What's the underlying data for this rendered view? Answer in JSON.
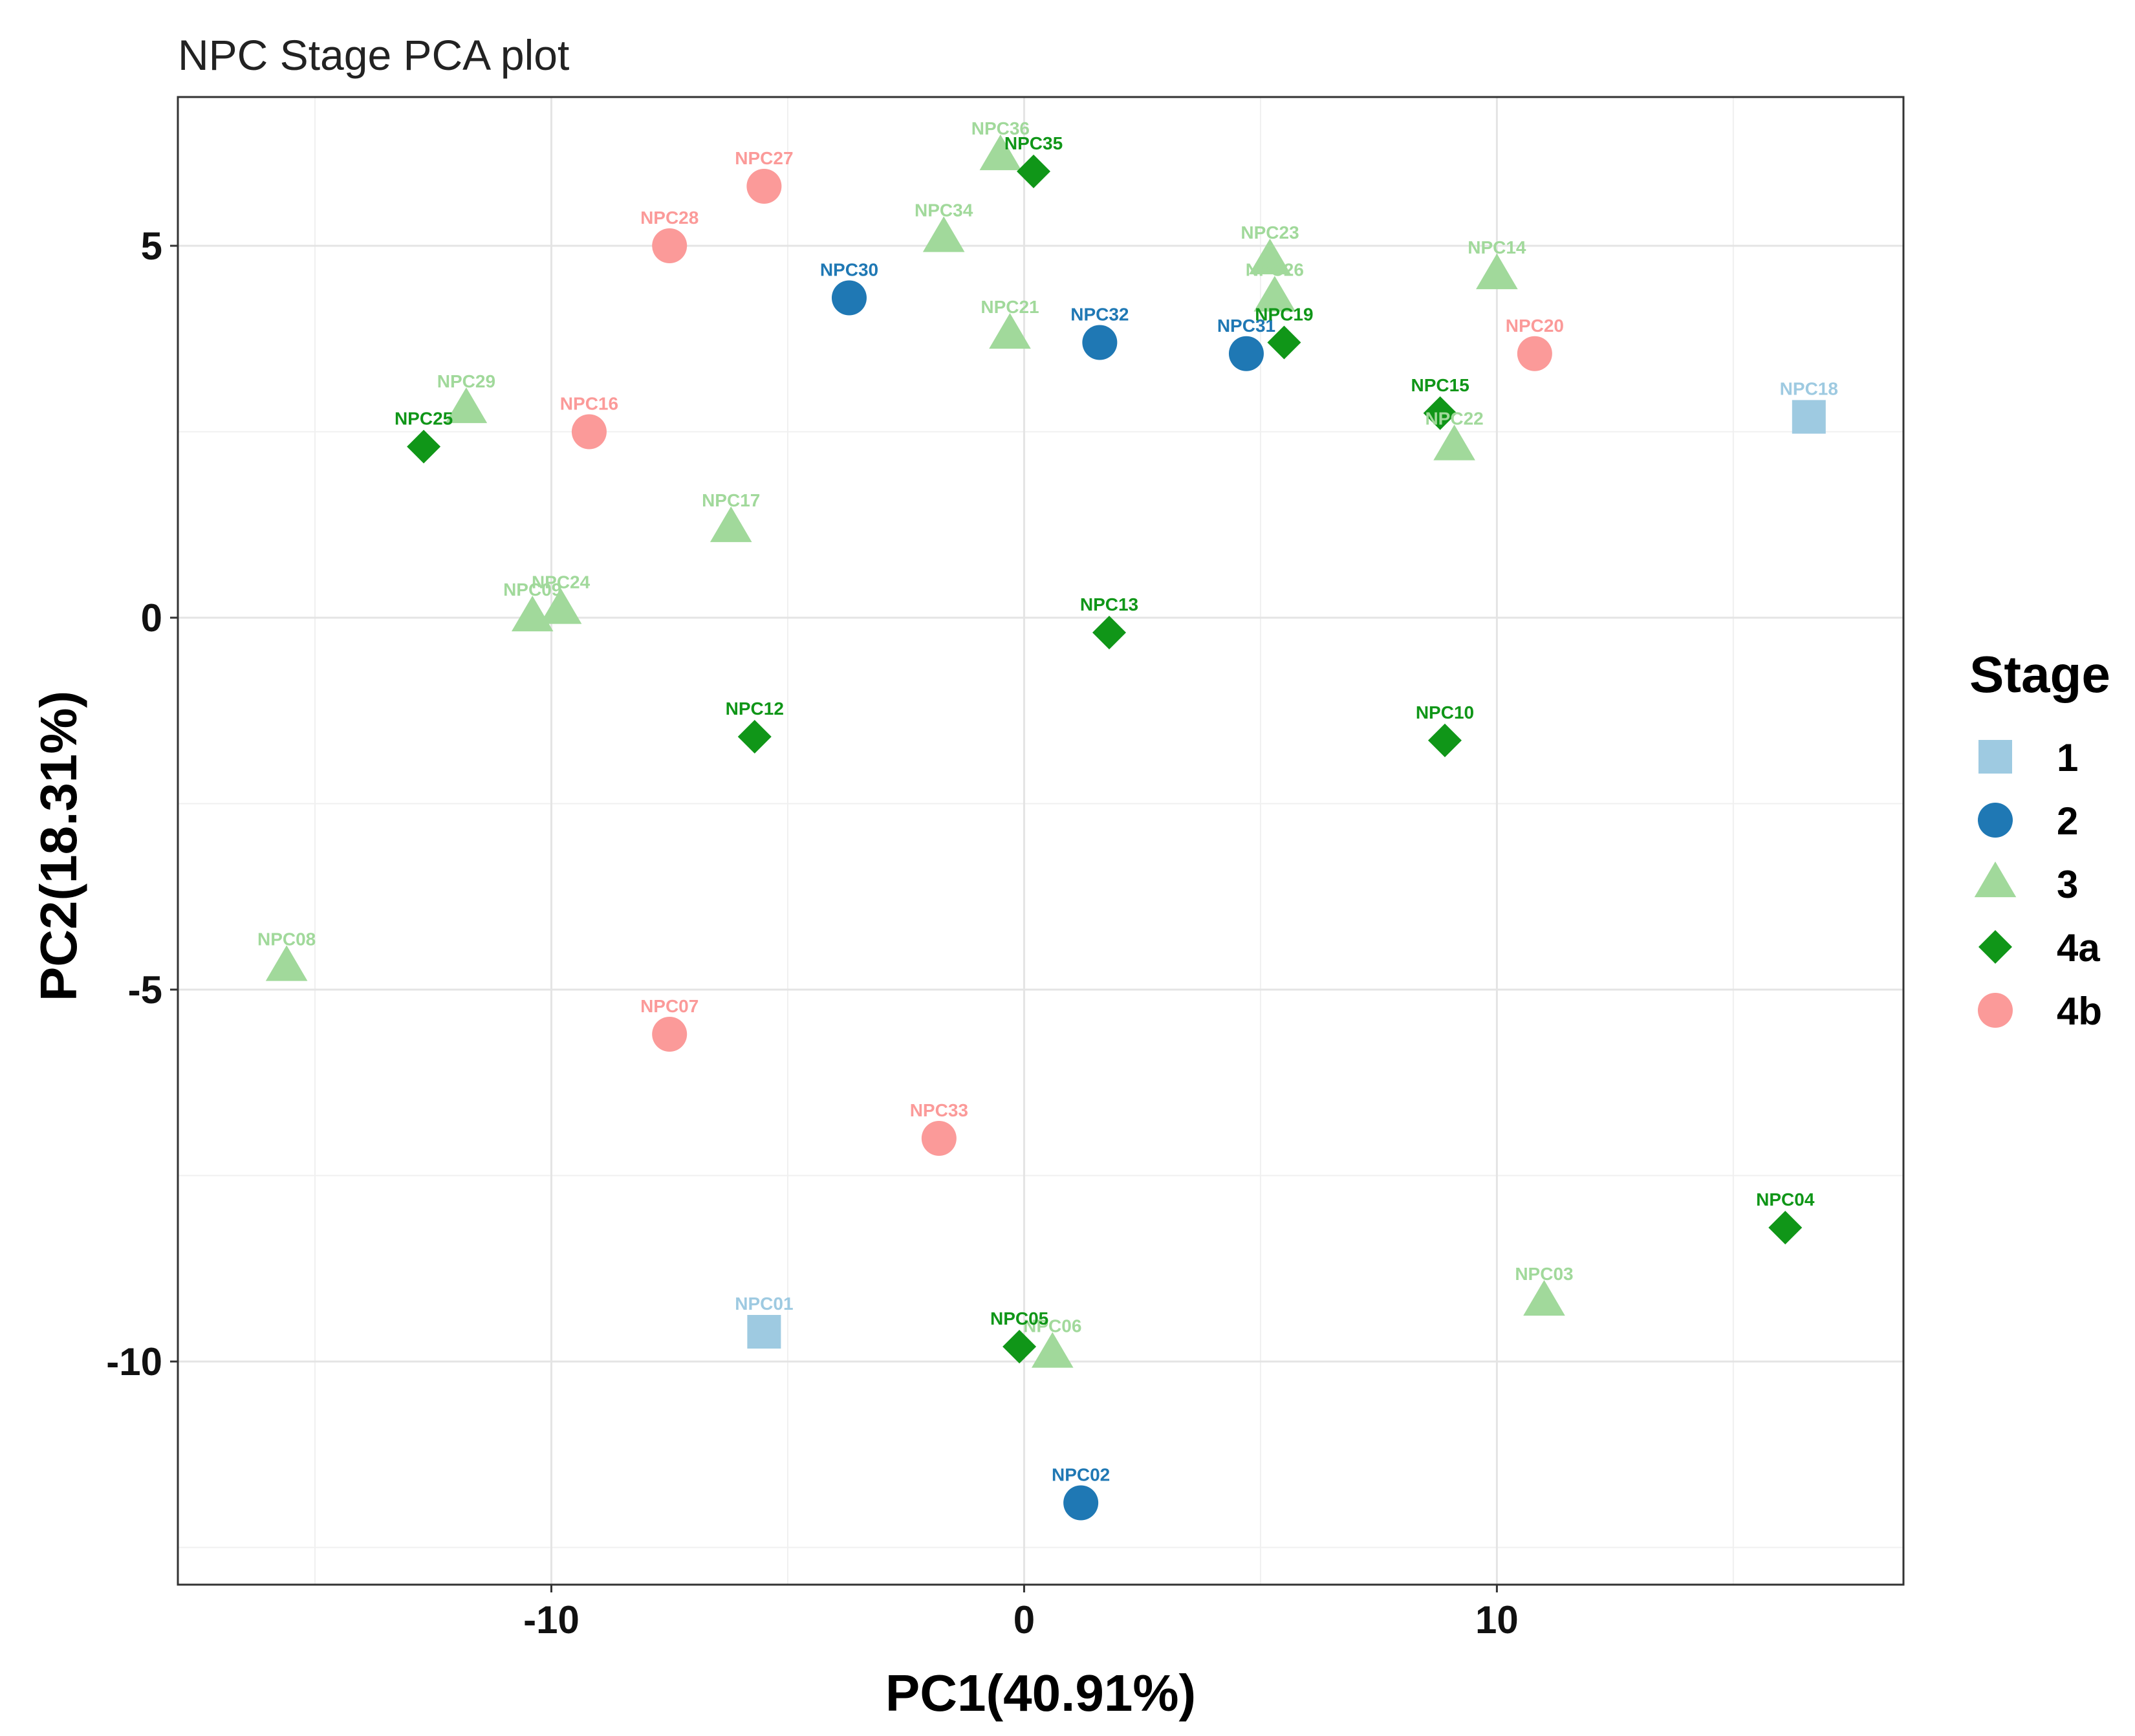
{
  "chart_data": {
    "type": "scatter",
    "title": "NPC Stage PCA plot",
    "xlabel": "PC1(40.91%)",
    "ylabel": "PC2(18.31%)",
    "xlim": [
      -17.9,
      18.6
    ],
    "ylim": [
      -13.0,
      7.0
    ],
    "x_ticks": [
      -10,
      0,
      10
    ],
    "y_ticks": [
      5,
      0,
      -5,
      -10
    ],
    "x_tick_labels": [
      "-10",
      "0",
      "10"
    ],
    "y_tick_labels": [
      "5",
      "0",
      "-5",
      "-10"
    ],
    "x_minor_grid": [
      -15,
      -5,
      5,
      15
    ],
    "y_minor_grid": [
      2.5,
      -2.5,
      -7.5,
      -12.5
    ],
    "grid": true,
    "legend": {
      "title": "Stage",
      "position": "right",
      "entries": [
        {
          "stage": "1",
          "label": "1",
          "shape": "square",
          "color": "#9ecae1"
        },
        {
          "stage": "2",
          "label": "2",
          "shape": "circle",
          "color": "#1f78b4"
        },
        {
          "stage": "3",
          "label": "3",
          "shape": "triangle",
          "color": "#a1d99b"
        },
        {
          "stage": "4a",
          "label": "4a",
          "shape": "diamond",
          "color": "#109618"
        },
        {
          "stage": "4b",
          "label": "4b",
          "shape": "circle",
          "color": "#fb9a99"
        }
      ]
    },
    "points": [
      {
        "label": "NPC01",
        "stage": "1",
        "x": -5.5,
        "y": -9.6
      },
      {
        "label": "NPC18",
        "stage": "1",
        "x": 16.6,
        "y": 2.7
      },
      {
        "label": "NPC30",
        "stage": "2",
        "x": -3.7,
        "y": 4.3
      },
      {
        "label": "NPC32",
        "stage": "2",
        "x": 1.6,
        "y": 3.7
      },
      {
        "label": "NPC31",
        "stage": "2",
        "x": 4.7,
        "y": 3.55
      },
      {
        "label": "NPC02",
        "stage": "2",
        "x": 1.2,
        "y": -11.9
      },
      {
        "label": "NPC36",
        "stage": "3",
        "x": -0.5,
        "y": 6.2
      },
      {
        "label": "NPC34",
        "stage": "3",
        "x": -1.7,
        "y": 5.1
      },
      {
        "label": "NPC21",
        "stage": "3",
        "x": -0.3,
        "y": 3.8
      },
      {
        "label": "NPC23",
        "stage": "3",
        "x": 5.2,
        "y": 4.8
      },
      {
        "label": "NPC26",
        "stage": "3",
        "x": 5.3,
        "y": 4.3
      },
      {
        "label": "NPC14",
        "stage": "3",
        "x": 10.0,
        "y": 4.6
      },
      {
        "label": "NPC22",
        "stage": "3",
        "x": 9.1,
        "y": 2.3
      },
      {
        "label": "NPC29",
        "stage": "3",
        "x": -11.8,
        "y": 2.8
      },
      {
        "label": "NPC17",
        "stage": "3",
        "x": -6.2,
        "y": 1.2
      },
      {
        "label": "NPC24",
        "stage": "3",
        "x": -9.8,
        "y": 0.1
      },
      {
        "label": "NPC09",
        "stage": "3",
        "x": -10.4,
        "y": 0.0
      },
      {
        "label": "NPC08",
        "stage": "3",
        "x": -15.6,
        "y": -4.7
      },
      {
        "label": "NPC06",
        "stage": "3",
        "x": 0.6,
        "y": -9.9
      },
      {
        "label": "NPC03",
        "stage": "3",
        "x": 11.0,
        "y": -9.2
      },
      {
        "label": "NPC35",
        "stage": "4a",
        "x": 0.2,
        "y": 6.0
      },
      {
        "label": "NPC19",
        "stage": "4a",
        "x": 5.5,
        "y": 3.7
      },
      {
        "label": "NPC15",
        "stage": "4a",
        "x": 8.8,
        "y": 2.75
      },
      {
        "label": "NPC25",
        "stage": "4a",
        "x": -12.7,
        "y": 2.3
      },
      {
        "label": "NPC13",
        "stage": "4a",
        "x": 1.8,
        "y": -0.2
      },
      {
        "label": "NPC12",
        "stage": "4a",
        "x": -5.7,
        "y": -1.6
      },
      {
        "label": "NPC10",
        "stage": "4a",
        "x": 8.9,
        "y": -1.65
      },
      {
        "label": "NPC05",
        "stage": "4a",
        "x": -0.1,
        "y": -9.8
      },
      {
        "label": "NPC04",
        "stage": "4a",
        "x": 16.1,
        "y": -8.2
      },
      {
        "label": "NPC27",
        "stage": "4b",
        "x": -5.5,
        "y": 5.8
      },
      {
        "label": "NPC28",
        "stage": "4b",
        "x": -7.5,
        "y": 5.0
      },
      {
        "label": "NPC20",
        "stage": "4b",
        "x": 10.8,
        "y": 3.55
      },
      {
        "label": "NPC16",
        "stage": "4b",
        "x": -9.2,
        "y": 2.5
      },
      {
        "label": "NPC07",
        "stage": "4b",
        "x": -7.5,
        "y": -5.6
      },
      {
        "label": "NPC33",
        "stage": "4b",
        "x": -1.8,
        "y": -7.0
      }
    ]
  }
}
